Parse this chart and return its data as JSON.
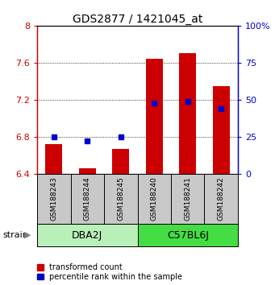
{
  "title": "GDS2877 / 1421045_at",
  "samples": [
    "GSM188243",
    "GSM188244",
    "GSM188245",
    "GSM188240",
    "GSM188241",
    "GSM188242"
  ],
  "transformed_counts": [
    6.72,
    6.46,
    6.67,
    7.64,
    7.7,
    7.35
  ],
  "percentile_ranks": [
    25,
    22,
    25,
    48,
    49,
    44
  ],
  "ylim_left": [
    6.4,
    8.0
  ],
  "ylim_right": [
    0,
    100
  ],
  "yticks_left": [
    6.4,
    6.8,
    7.2,
    7.6,
    8.0
  ],
  "yticks_right": [
    0,
    25,
    50,
    75,
    100
  ],
  "ytick_labels_left": [
    "6.4",
    "6.8",
    "7.2",
    "7.6",
    "8"
  ],
  "ytick_labels_right": [
    "0",
    "25",
    "50",
    "75",
    "100%"
  ],
  "bar_color": "#CC0000",
  "dot_color": "#0000CC",
  "bar_width": 0.5,
  "label_tc": "transformed count",
  "label_pr": "percentile rank within the sample",
  "group_label_color_dba": "#b8f0b8",
  "group_label_color_c57": "#44dd44",
  "gray_color": "#c8c8c8",
  "dba_samples": 3,
  "c57_samples": 3
}
